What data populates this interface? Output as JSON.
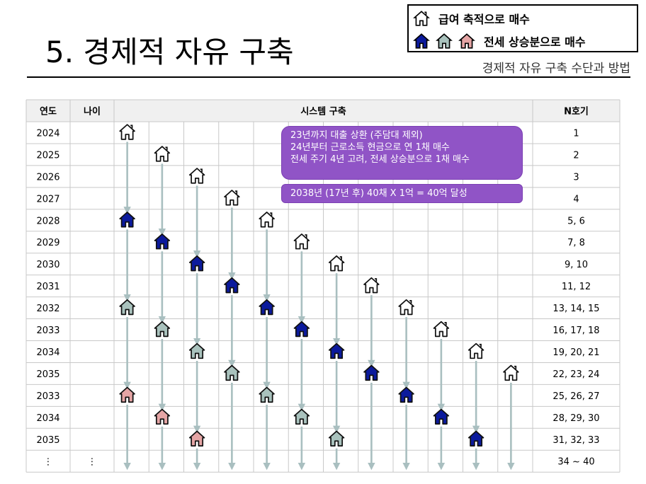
{
  "slide": {
    "title": "5. 경제적 자유 구축",
    "subtitle": "경제적 자유 구축 수단과 방법"
  },
  "legend": {
    "item1_label": "급여 축적으로 매수",
    "item2_label": "전세 상승분으로 매수"
  },
  "colors": {
    "salary_house": "#ffffff",
    "gen1_house": "#0b1a9c",
    "gen2_house": "#a9c2bd",
    "gen3_house": "#e5a5a5",
    "arrow": "#a9bfc0",
    "header_bg": "#f0f0f0",
    "grid_line": "#c8c8c8",
    "callout_bg": "#9054c6"
  },
  "table": {
    "headers": [
      "연도",
      "나이",
      "시스템 구축",
      "N호기"
    ],
    "rows": [
      {
        "year": "2024",
        "age": "",
        "n": "1"
      },
      {
        "year": "2025",
        "age": "",
        "n": "2"
      },
      {
        "year": "2026",
        "age": "",
        "n": "3"
      },
      {
        "year": "2027",
        "age": "",
        "n": "4"
      },
      {
        "year": "2028",
        "age": "",
        "n": "5, 6"
      },
      {
        "year": "2029",
        "age": "",
        "n": "7, 8"
      },
      {
        "year": "2030",
        "age": "",
        "n": "9, 10"
      },
      {
        "year": "2031",
        "age": "",
        "n": "11, 12"
      },
      {
        "year": "2032",
        "age": "",
        "n": "13, 14, 15"
      },
      {
        "year": "2033",
        "age": "",
        "n": "16, 17, 18"
      },
      {
        "year": "2034",
        "age": "",
        "n": "19, 20, 21"
      },
      {
        "year": "2035",
        "age": "",
        "n": "22, 23, 24"
      },
      {
        "year": "2033",
        "age": "",
        "n": "25, 26, 27"
      },
      {
        "year": "2034",
        "age": "",
        "n": "28, 29, 30"
      },
      {
        "year": "2035",
        "age": "",
        "n": "31, 32, 33"
      },
      {
        "year": "⋮",
        "age": "⋮",
        "n": "34 ~ 40"
      }
    ]
  },
  "callouts": {
    "plan_lines": [
      "23년까지 대출 상환 (주담대 제외)",
      "24년부터 근로소득 현금으로 연 1채 매수",
      "전세 주기 4년 고려, 전세 상승분으로 1채 매수"
    ],
    "goal_line": "2038년 (17년  후) 40채 X 1억 = 40억 달성"
  },
  "timeline": {
    "columns": [
      {
        "start_row": 0,
        "houses": [
          [
            0,
            "salary"
          ],
          [
            4,
            "gen1"
          ],
          [
            8,
            "gen2"
          ],
          [
            12,
            "gen3"
          ]
        ]
      },
      {
        "start_row": 1,
        "houses": [
          [
            1,
            "salary"
          ],
          [
            5,
            "gen1"
          ],
          [
            9,
            "gen2"
          ],
          [
            13,
            "gen3"
          ]
        ]
      },
      {
        "start_row": 2,
        "houses": [
          [
            2,
            "salary"
          ],
          [
            6,
            "gen1"
          ],
          [
            10,
            "gen2"
          ],
          [
            14,
            "gen3"
          ]
        ]
      },
      {
        "start_row": 3,
        "houses": [
          [
            3,
            "salary"
          ],
          [
            7,
            "gen1"
          ],
          [
            11,
            "gen2"
          ]
        ]
      },
      {
        "start_row": 4,
        "houses": [
          [
            4,
            "salary"
          ],
          [
            8,
            "gen1"
          ],
          [
            12,
            "gen2"
          ]
        ]
      },
      {
        "start_row": 5,
        "houses": [
          [
            5,
            "salary"
          ],
          [
            9,
            "gen1"
          ],
          [
            13,
            "gen2"
          ]
        ]
      },
      {
        "start_row": 6,
        "houses": [
          [
            6,
            "salary"
          ],
          [
            10,
            "gen1"
          ],
          [
            14,
            "gen2"
          ]
        ]
      },
      {
        "start_row": 7,
        "houses": [
          [
            7,
            "salary"
          ],
          [
            11,
            "gen1"
          ]
        ]
      },
      {
        "start_row": 8,
        "houses": [
          [
            8,
            "salary"
          ],
          [
            12,
            "gen1"
          ]
        ]
      },
      {
        "start_row": 9,
        "houses": [
          [
            9,
            "salary"
          ],
          [
            13,
            "gen1"
          ]
        ]
      },
      {
        "start_row": 10,
        "houses": [
          [
            10,
            "salary"
          ],
          [
            14,
            "gen1"
          ]
        ]
      },
      {
        "start_row": 11,
        "houses": [
          [
            11,
            "salary"
          ]
        ]
      }
    ]
  }
}
